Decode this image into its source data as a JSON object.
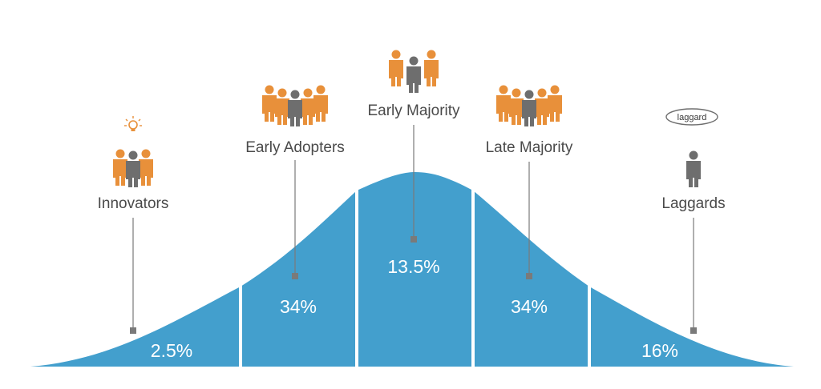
{
  "colors": {
    "curve_fill": "#439fcd",
    "divider": "#ffffff",
    "leader": "#7a7a7a",
    "label_text": "#4a4a4a",
    "person_orange": "#e8903a",
    "person_gray": "#6e6e6e"
  },
  "segments": [
    {
      "name": "Innovators",
      "percent": "2.5%"
    },
    {
      "name": "Early Adopters",
      "percent": "34%"
    },
    {
      "name": "Early Majority",
      "percent": "13.5%"
    },
    {
      "name": "Late Majority",
      "percent": "34%"
    },
    {
      "name": "Laggards",
      "percent": "16%"
    }
  ],
  "icons": {
    "innovators": "lightbulb-people-group-icon",
    "early_adopters": "people-group-icon",
    "early_majority": "people-group-icon",
    "late_majority": "people-group-icon",
    "laggards": "lone-person-icon"
  },
  "laggard_badge": "laggard"
}
